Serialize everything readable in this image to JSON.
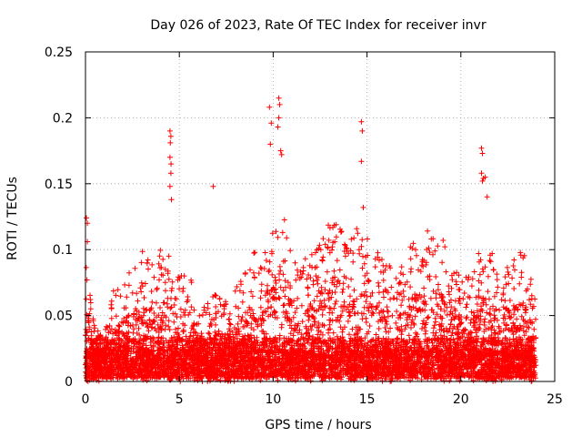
{
  "chart_data": {
    "type": "scatter",
    "title": "Day 026 of 2023, Rate Of TEC Index for receiver invr",
    "xlabel": "GPS time / hours",
    "ylabel": "ROTI / TECUs",
    "xlim": [
      0,
      25
    ],
    "ylim": [
      0,
      0.25
    ],
    "x_ticks": [
      0,
      5,
      10,
      15,
      20,
      25
    ],
    "x_tick_labels": [
      "0",
      "5",
      "10",
      "15",
      "20",
      "25"
    ],
    "y_ticks": [
      0,
      0.05,
      0.1,
      0.15,
      0.2,
      0.25
    ],
    "y_tick_labels": [
      "0",
      "0.05",
      "0.1",
      "0.15",
      "0.2",
      "0.25"
    ],
    "grid": true,
    "marker": "+",
    "color": "#ff0000",
    "data_range_hours": [
      0,
      24
    ],
    "envelope": {
      "hours": [
        0,
        0.5,
        1,
        1.5,
        2,
        2.5,
        3,
        3.5,
        4,
        4.5,
        5,
        5.5,
        6,
        6.5,
        7,
        7.5,
        8,
        8.5,
        9,
        9.5,
        10,
        10.5,
        11,
        11.5,
        12,
        12.5,
        13,
        13.5,
        14,
        14.5,
        15,
        15.5,
        16,
        16.5,
        17,
        17.5,
        18,
        18.5,
        19,
        19.5,
        20,
        20.5,
        21,
        21.5,
        22,
        22.5,
        23,
        23.5,
        24
      ],
      "typical_max": [
        0.1,
        0.04,
        0.035,
        0.07,
        0.075,
        0.09,
        0.1,
        0.09,
        0.1,
        0.11,
        0.08,
        0.09,
        0.05,
        0.06,
        0.07,
        0.06,
        0.07,
        0.09,
        0.1,
        0.11,
        0.12,
        0.13,
        0.1,
        0.09,
        0.1,
        0.11,
        0.13,
        0.12,
        0.11,
        0.12,
        0.11,
        0.1,
        0.1,
        0.08,
        0.09,
        0.11,
        0.12,
        0.12,
        0.11,
        0.09,
        0.08,
        0.08,
        0.1,
        0.11,
        0.08,
        0.09,
        0.1,
        0.1,
        0.06
      ]
    },
    "spikes": [
      {
        "x": 0.05,
        "y": 0.124
      },
      {
        "x": 0.1,
        "y": 0.12
      },
      {
        "x": 0.1,
        "y": 0.106
      },
      {
        "x": 0.08,
        "y": 0.077
      },
      {
        "x": 4.5,
        "y": 0.19
      },
      {
        "x": 4.55,
        "y": 0.186
      },
      {
        "x": 4.52,
        "y": 0.181
      },
      {
        "x": 4.5,
        "y": 0.17
      },
      {
        "x": 4.56,
        "y": 0.165
      },
      {
        "x": 4.55,
        "y": 0.158
      },
      {
        "x": 4.5,
        "y": 0.148
      },
      {
        "x": 4.58,
        "y": 0.138
      },
      {
        "x": 6.8,
        "y": 0.148
      },
      {
        "x": 9.8,
        "y": 0.208
      },
      {
        "x": 9.9,
        "y": 0.196
      },
      {
        "x": 9.85,
        "y": 0.18
      },
      {
        "x": 10.3,
        "y": 0.215
      },
      {
        "x": 10.35,
        "y": 0.21
      },
      {
        "x": 10.3,
        "y": 0.2
      },
      {
        "x": 10.25,
        "y": 0.193
      },
      {
        "x": 10.4,
        "y": 0.175
      },
      {
        "x": 10.45,
        "y": 0.172
      },
      {
        "x": 14.7,
        "y": 0.197
      },
      {
        "x": 14.75,
        "y": 0.19
      },
      {
        "x": 14.7,
        "y": 0.167
      },
      {
        "x": 14.8,
        "y": 0.132
      },
      {
        "x": 21.1,
        "y": 0.177
      },
      {
        "x": 21.15,
        "y": 0.173
      },
      {
        "x": 21.1,
        "y": 0.158
      },
      {
        "x": 21.2,
        "y": 0.154
      },
      {
        "x": 21.15,
        "y": 0.152
      },
      {
        "x": 21.3,
        "y": 0.155
      },
      {
        "x": 21.4,
        "y": 0.14
      }
    ]
  }
}
